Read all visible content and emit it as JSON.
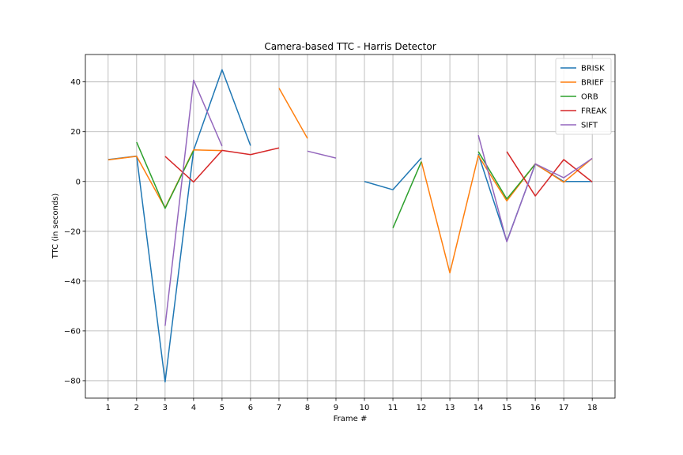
{
  "chart_data": {
    "type": "line",
    "title": "Camera-based TTC - Harris Detector",
    "xlabel": "Frame #",
    "ylabel": "TTC (in seconds)",
    "x": [
      1,
      2,
      3,
      4,
      5,
      6,
      7,
      8,
      9,
      10,
      11,
      12,
      13,
      14,
      15,
      16,
      17,
      18
    ],
    "xlim": [
      0.2,
      18.8
    ],
    "ylim": [
      -87,
      51
    ],
    "yticks": [
      -80,
      -60,
      -40,
      -20,
      0,
      20,
      40
    ],
    "grid": true,
    "legend_position": "top-right",
    "series": [
      {
        "name": "BRISK",
        "color": "#1f77b4",
        "values": [
          8.8,
          10.2,
          -80.5,
          12.5,
          44.9,
          14.4,
          null,
          null,
          null,
          0.0,
          -3.3,
          9.5,
          null,
          11.0,
          -24.0,
          7.0,
          0.0,
          0.0
        ]
      },
      {
        "name": "BRIEF",
        "color": "#ff7f0e",
        "values": [
          8.7,
          10.1,
          -10.6,
          12.7,
          12.4,
          null,
          37.5,
          17.3,
          null,
          null,
          null,
          8.0,
          -36.7,
          10.4,
          -7.8,
          7.1,
          -0.3,
          9.3
        ]
      },
      {
        "name": "ORB",
        "color": "#2ca02c",
        "values": [
          null,
          15.8,
          -10.8,
          12.4,
          null,
          null,
          null,
          null,
          null,
          null,
          -18.7,
          8.0,
          null,
          12.0,
          -7.0,
          7.0,
          null,
          null
        ]
      },
      {
        "name": "FREAK",
        "color": "#d62728",
        "values": [
          null,
          null,
          10.1,
          -0.2,
          12.5,
          10.8,
          13.5,
          null,
          null,
          null,
          null,
          null,
          null,
          null,
          12.0,
          -5.8,
          8.8,
          -0.2
        ]
      },
      {
        "name": "SIFT",
        "color": "#9467bd",
        "values": [
          null,
          null,
          -58.0,
          40.7,
          14.2,
          null,
          null,
          12.2,
          9.4,
          null,
          null,
          null,
          null,
          18.6,
          -24.2,
          7.1,
          1.5,
          9.3
        ]
      }
    ]
  }
}
